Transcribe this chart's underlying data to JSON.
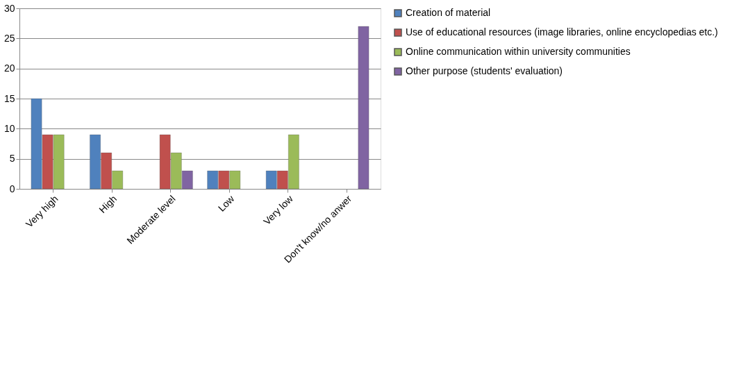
{
  "chart_data": {
    "type": "bar",
    "categories": [
      "Very high",
      "High",
      "Moderate level",
      "Low",
      "Very low",
      "Don't know/no anwer"
    ],
    "series": [
      {
        "name": "Creation of material",
        "color": "#4f81bd",
        "values": [
          15,
          9,
          null,
          3,
          3,
          null
        ]
      },
      {
        "name": "Use of educational resources (image libraries, online encyclopedias etc.)",
        "color": "#c0504d",
        "values": [
          9,
          6,
          9,
          3,
          3,
          null
        ]
      },
      {
        "name": "Online communication within university communities",
        "color": "#9bbb59",
        "values": [
          9,
          3,
          6,
          3,
          9,
          null
        ]
      },
      {
        "name": "Other purpose (students' evaluation)",
        "color": "#8064a2",
        "values": [
          null,
          null,
          3,
          null,
          null,
          27
        ]
      }
    ],
    "ylim": [
      0,
      30
    ],
    "yticks": [
      0,
      5,
      10,
      15,
      20,
      25,
      30
    ],
    "grid": "y",
    "legend": "right"
  }
}
